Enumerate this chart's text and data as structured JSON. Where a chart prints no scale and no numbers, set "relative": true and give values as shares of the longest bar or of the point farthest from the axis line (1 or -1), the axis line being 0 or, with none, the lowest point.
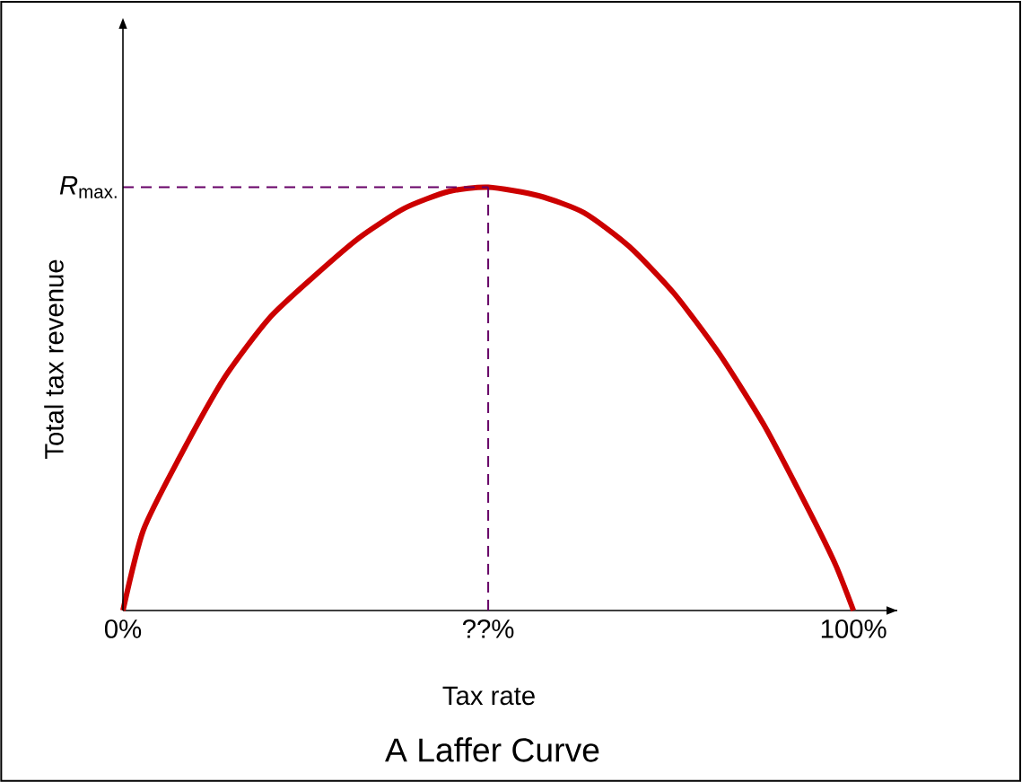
{
  "chart_data": {
    "type": "line",
    "title": "A Laffer Curve",
    "xlabel": "Tax rate",
    "ylabel": "Total tax revenue",
    "relative": true,
    "xlim": [
      0,
      106
    ],
    "xticks": [
      {
        "value": 0,
        "label": "0%"
      },
      {
        "value": 50,
        "label": "??%"
      },
      {
        "value": 100,
        "label": "100%"
      }
    ],
    "series": [
      {
        "color": "#cc0000",
        "x": [
          0,
          2.8,
          7.7,
          13.9,
          20.0,
          26.2,
          32.3,
          38.5,
          44.6,
          50,
          56.9,
          63.1,
          69.3,
          75.4,
          81.5,
          87.7,
          93.8,
          97.5,
          100
        ],
        "values": [
          0,
          0.19,
          0.36,
          0.55,
          0.69,
          0.79,
          0.88,
          0.95,
          0.99,
          1,
          0.98,
          0.94,
          0.86,
          0.75,
          0.61,
          0.44,
          0.24,
          0.11,
          0
        ]
      }
    ],
    "ref_lines": [
      {
        "axis": "y",
        "value": 1,
        "label": "*R*$_{max.}$",
        "color": "#660066",
        "line_style": "dashed"
      },
      {
        "axis": "x",
        "value": 50,
        "color": "#660066",
        "line_style": "dashed"
      }
    ]
  }
}
